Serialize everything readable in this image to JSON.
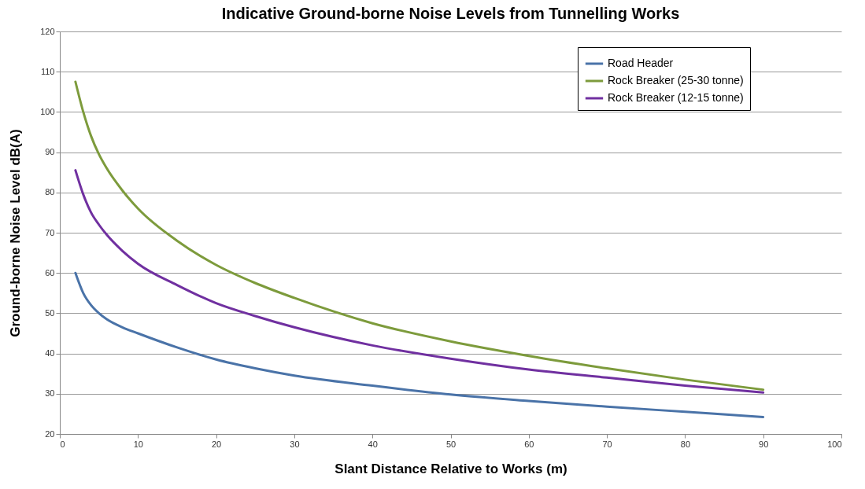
{
  "chart_data": {
    "type": "line",
    "title": "Indicative Ground-borne Noise Levels from Tunnelling Works",
    "xlabel": "Slant Distance Relative to Works (m)",
    "ylabel": "Ground-borne Noise Level dB(A)",
    "x": [
      2,
      3,
      4,
      5,
      6,
      8,
      10,
      15,
      20,
      25,
      30,
      40,
      50,
      60,
      70,
      80,
      90
    ],
    "series": [
      {
        "name": "Road Header",
        "color": "#4a73a8",
        "values": [
          60,
          55,
          52,
          50,
          48.5,
          46.5,
          45,
          41.5,
          38.5,
          36.3,
          34.5,
          32,
          29.8,
          28.2,
          26.8,
          25.5,
          24.2
        ]
      },
      {
        "name": "Rock Breaker (25-30 tonne)",
        "color": "#7d9b3c",
        "values": [
          107.5,
          100,
          94,
          89.5,
          86,
          80.5,
          76,
          68,
          62,
          57.5,
          53.8,
          47.5,
          43,
          39.4,
          36.3,
          33.5,
          31
        ]
      },
      {
        "name": "Rock Breaker (12-15 tonne)",
        "color": "#7030a0",
        "values": [
          85.5,
          79.5,
          75,
          72,
          69.5,
          65.5,
          62.3,
          57,
          52.5,
          49.3,
          46.5,
          42,
          38.7,
          36,
          34,
          32,
          30.3
        ]
      }
    ],
    "xlim": [
      0,
      100
    ],
    "xticks": [
      0,
      10,
      20,
      30,
      40,
      50,
      60,
      70,
      80,
      90,
      100
    ],
    "ylim": [
      20,
      120
    ],
    "yticks": [
      20,
      30,
      40,
      50,
      60,
      70,
      80,
      90,
      100,
      110,
      120
    ],
    "grid": "y",
    "legend": "top right",
    "marker": "none",
    "line_style": "solid"
  }
}
